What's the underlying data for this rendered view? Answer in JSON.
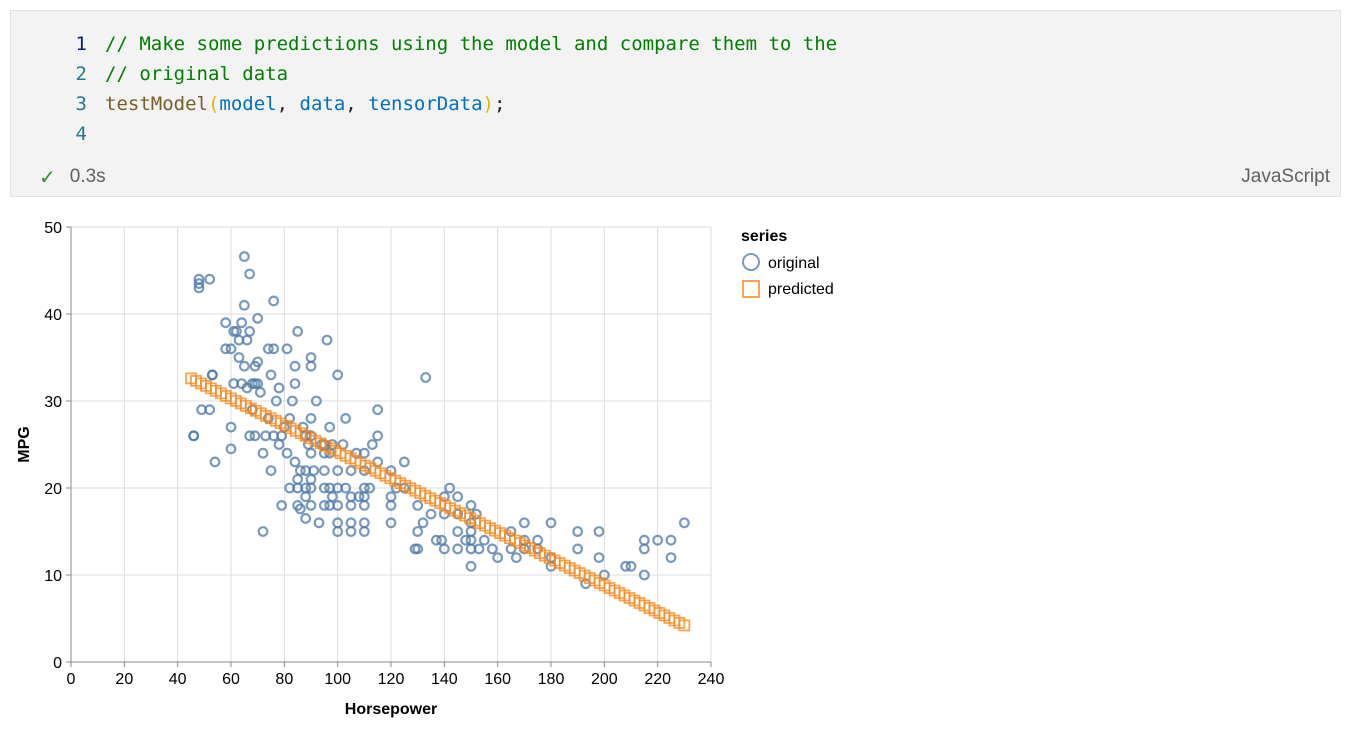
{
  "cell": {
    "code_lines": [
      {
        "number": "1",
        "tokens": [
          {
            "cls": "cm",
            "text": "// Make some predictions using the model and compare them to the"
          }
        ]
      },
      {
        "number": "2",
        "tokens": [
          {
            "cls": "cm",
            "text": "// original data"
          }
        ]
      },
      {
        "number": "3",
        "tokens": [
          {
            "cls": "fn",
            "text": "testModel"
          },
          {
            "cls": "par",
            "text": "("
          },
          {
            "cls": "var",
            "text": "model"
          },
          {
            "cls": "pun",
            "text": ", "
          },
          {
            "cls": "var",
            "text": "data"
          },
          {
            "cls": "pun",
            "text": ", "
          },
          {
            "cls": "var",
            "text": "tensorData"
          },
          {
            "cls": "par",
            "text": ")"
          },
          {
            "cls": "pun",
            "text": ";"
          }
        ]
      },
      {
        "number": "4",
        "tokens": []
      }
    ],
    "status_icon": "check-icon",
    "status_time": "0.3s",
    "language": "JavaScript"
  },
  "colors": {
    "original": "#4c78a8",
    "predicted": "#f58518",
    "grid": "#dddddd"
  },
  "chart_data": {
    "type": "scatter",
    "xlabel": "Horsepower",
    "ylabel": "MPG",
    "xlim": [
      0,
      240
    ],
    "ylim": [
      0,
      50
    ],
    "xticks": [
      0,
      20,
      40,
      60,
      80,
      100,
      120,
      140,
      160,
      180,
      200,
      220,
      240
    ],
    "yticks": [
      0,
      10,
      20,
      30,
      40,
      50
    ],
    "grid": true,
    "legend": {
      "title": "series",
      "placement": "right"
    },
    "series": [
      {
        "name": "original",
        "marker": "circle",
        "points": [
          [
            46,
            26
          ],
          [
            46,
            26
          ],
          [
            48,
            43
          ],
          [
            48,
            44
          ],
          [
            48,
            43.5
          ],
          [
            49,
            29
          ],
          [
            52,
            29
          ],
          [
            52,
            44
          ],
          [
            53,
            33
          ],
          [
            53,
            33
          ],
          [
            54,
            23
          ],
          [
            58,
            39
          ],
          [
            58,
            36
          ],
          [
            60,
            36
          ],
          [
            60,
            24.5
          ],
          [
            60,
            27
          ],
          [
            61,
            32
          ],
          [
            61,
            38
          ],
          [
            62,
            38
          ],
          [
            63,
            37
          ],
          [
            63,
            35
          ],
          [
            64,
            39
          ],
          [
            64,
            32
          ],
          [
            65,
            34
          ],
          [
            65,
            41
          ],
          [
            65,
            46.6
          ],
          [
            66,
            31.5
          ],
          [
            66,
            37
          ],
          [
            67,
            44.6
          ],
          [
            67,
            26
          ],
          [
            67,
            38
          ],
          [
            68,
            29
          ],
          [
            68,
            32
          ],
          [
            69,
            26
          ],
          [
            69,
            32
          ],
          [
            69,
            34
          ],
          [
            70,
            32
          ],
          [
            70,
            34.5
          ],
          [
            70,
            39.5
          ],
          [
            71,
            31
          ],
          [
            72,
            15
          ],
          [
            72,
            24
          ],
          [
            73,
            26
          ],
          [
            74,
            28
          ],
          [
            74,
            36
          ],
          [
            75,
            22
          ],
          [
            75,
            33
          ],
          [
            76,
            26
          ],
          [
            76,
            36
          ],
          [
            76,
            41.5
          ],
          [
            77,
            30
          ],
          [
            78,
            25
          ],
          [
            78,
            31.5
          ],
          [
            79,
            18
          ],
          [
            79,
            26
          ],
          [
            80,
            27
          ],
          [
            81,
            24
          ],
          [
            81,
            36
          ],
          [
            82,
            20
          ],
          [
            82,
            28
          ],
          [
            83,
            30
          ],
          [
            84,
            23
          ],
          [
            84,
            34
          ],
          [
            84,
            32
          ],
          [
            85,
            18
          ],
          [
            85,
            20
          ],
          [
            85,
            21
          ],
          [
            85,
            38
          ],
          [
            86,
            17.6
          ],
          [
            86,
            22
          ],
          [
            87,
            27
          ],
          [
            88,
            16.5
          ],
          [
            88,
            19
          ],
          [
            88,
            20
          ],
          [
            88,
            22
          ],
          [
            88,
            26
          ],
          [
            89,
            25
          ],
          [
            90,
            18
          ],
          [
            90,
            20
          ],
          [
            90,
            21
          ],
          [
            90,
            24
          ],
          [
            90,
            26
          ],
          [
            90,
            28
          ],
          [
            90,
            35
          ],
          [
            90,
            34
          ],
          [
            91,
            22
          ],
          [
            92,
            30
          ],
          [
            93,
            16
          ],
          [
            94,
            25
          ],
          [
            95,
            18
          ],
          [
            95,
            20
          ],
          [
            95,
            22
          ],
          [
            95,
            24
          ],
          [
            95,
            25
          ],
          [
            96,
            37
          ],
          [
            97,
            18
          ],
          [
            97,
            20
          ],
          [
            97,
            24
          ],
          [
            97,
            27
          ],
          [
            98,
            19
          ],
          [
            98,
            25
          ],
          [
            100,
            15
          ],
          [
            100,
            16
          ],
          [
            100,
            18
          ],
          [
            100,
            20
          ],
          [
            100,
            22
          ],
          [
            100,
            33
          ],
          [
            102,
            25
          ],
          [
            103,
            28
          ],
          [
            103,
            20
          ],
          [
            105,
            15
          ],
          [
            105,
            16
          ],
          [
            105,
            18
          ],
          [
            105,
            19
          ],
          [
            105,
            22
          ],
          [
            107,
            24
          ],
          [
            108,
            19
          ],
          [
            110,
            15
          ],
          [
            110,
            16
          ],
          [
            110,
            18
          ],
          [
            110,
            19
          ],
          [
            110,
            20
          ],
          [
            110,
            22
          ],
          [
            110,
            24
          ],
          [
            112,
            20
          ],
          [
            113,
            25
          ],
          [
            115,
            26
          ],
          [
            115,
            29
          ],
          [
            115,
            23
          ],
          [
            120,
            16
          ],
          [
            120,
            18
          ],
          [
            120,
            19
          ],
          [
            120,
            22
          ],
          [
            122,
            20
          ],
          [
            125,
            20
          ],
          [
            125,
            23
          ],
          [
            129,
            13
          ],
          [
            130,
            13
          ],
          [
            130,
            15
          ],
          [
            130,
            18
          ],
          [
            132,
            16
          ],
          [
            133,
            32.7
          ],
          [
            135,
            17
          ],
          [
            137,
            14
          ],
          [
            139,
            14
          ],
          [
            140,
            13
          ],
          [
            140,
            17
          ],
          [
            140,
            19
          ],
          [
            142,
            20
          ],
          [
            145,
            13
          ],
          [
            145,
            15
          ],
          [
            145,
            17
          ],
          [
            145,
            19
          ],
          [
            148,
            14
          ],
          [
            150,
            11
          ],
          [
            150,
            13
          ],
          [
            150,
            14
          ],
          [
            150,
            15
          ],
          [
            150,
            16
          ],
          [
            150,
            18
          ],
          [
            152,
            17
          ],
          [
            153,
            13
          ],
          [
            155,
            14
          ],
          [
            158,
            13
          ],
          [
            160,
            12
          ],
          [
            165,
            13
          ],
          [
            165,
            15
          ],
          [
            167,
            12
          ],
          [
            170,
            13
          ],
          [
            170,
            14
          ],
          [
            170,
            16
          ],
          [
            175,
            13
          ],
          [
            175,
            14
          ],
          [
            180,
            11
          ],
          [
            180,
            12
          ],
          [
            180,
            16
          ],
          [
            190,
            13
          ],
          [
            190,
            15
          ],
          [
            193,
            9
          ],
          [
            198,
            15
          ],
          [
            198,
            12
          ],
          [
            200,
            10
          ],
          [
            208,
            11
          ],
          [
            210,
            11
          ],
          [
            215,
            13
          ],
          [
            215,
            14
          ],
          [
            215,
            10
          ],
          [
            220,
            14
          ],
          [
            225,
            12
          ],
          [
            225,
            14
          ],
          [
            230,
            16
          ]
        ]
      },
      {
        "name": "predicted",
        "marker": "square",
        "x_start": 45,
        "x_end": 230,
        "y_start": 32.6,
        "y_end": 4.2,
        "count": 100
      }
    ]
  }
}
